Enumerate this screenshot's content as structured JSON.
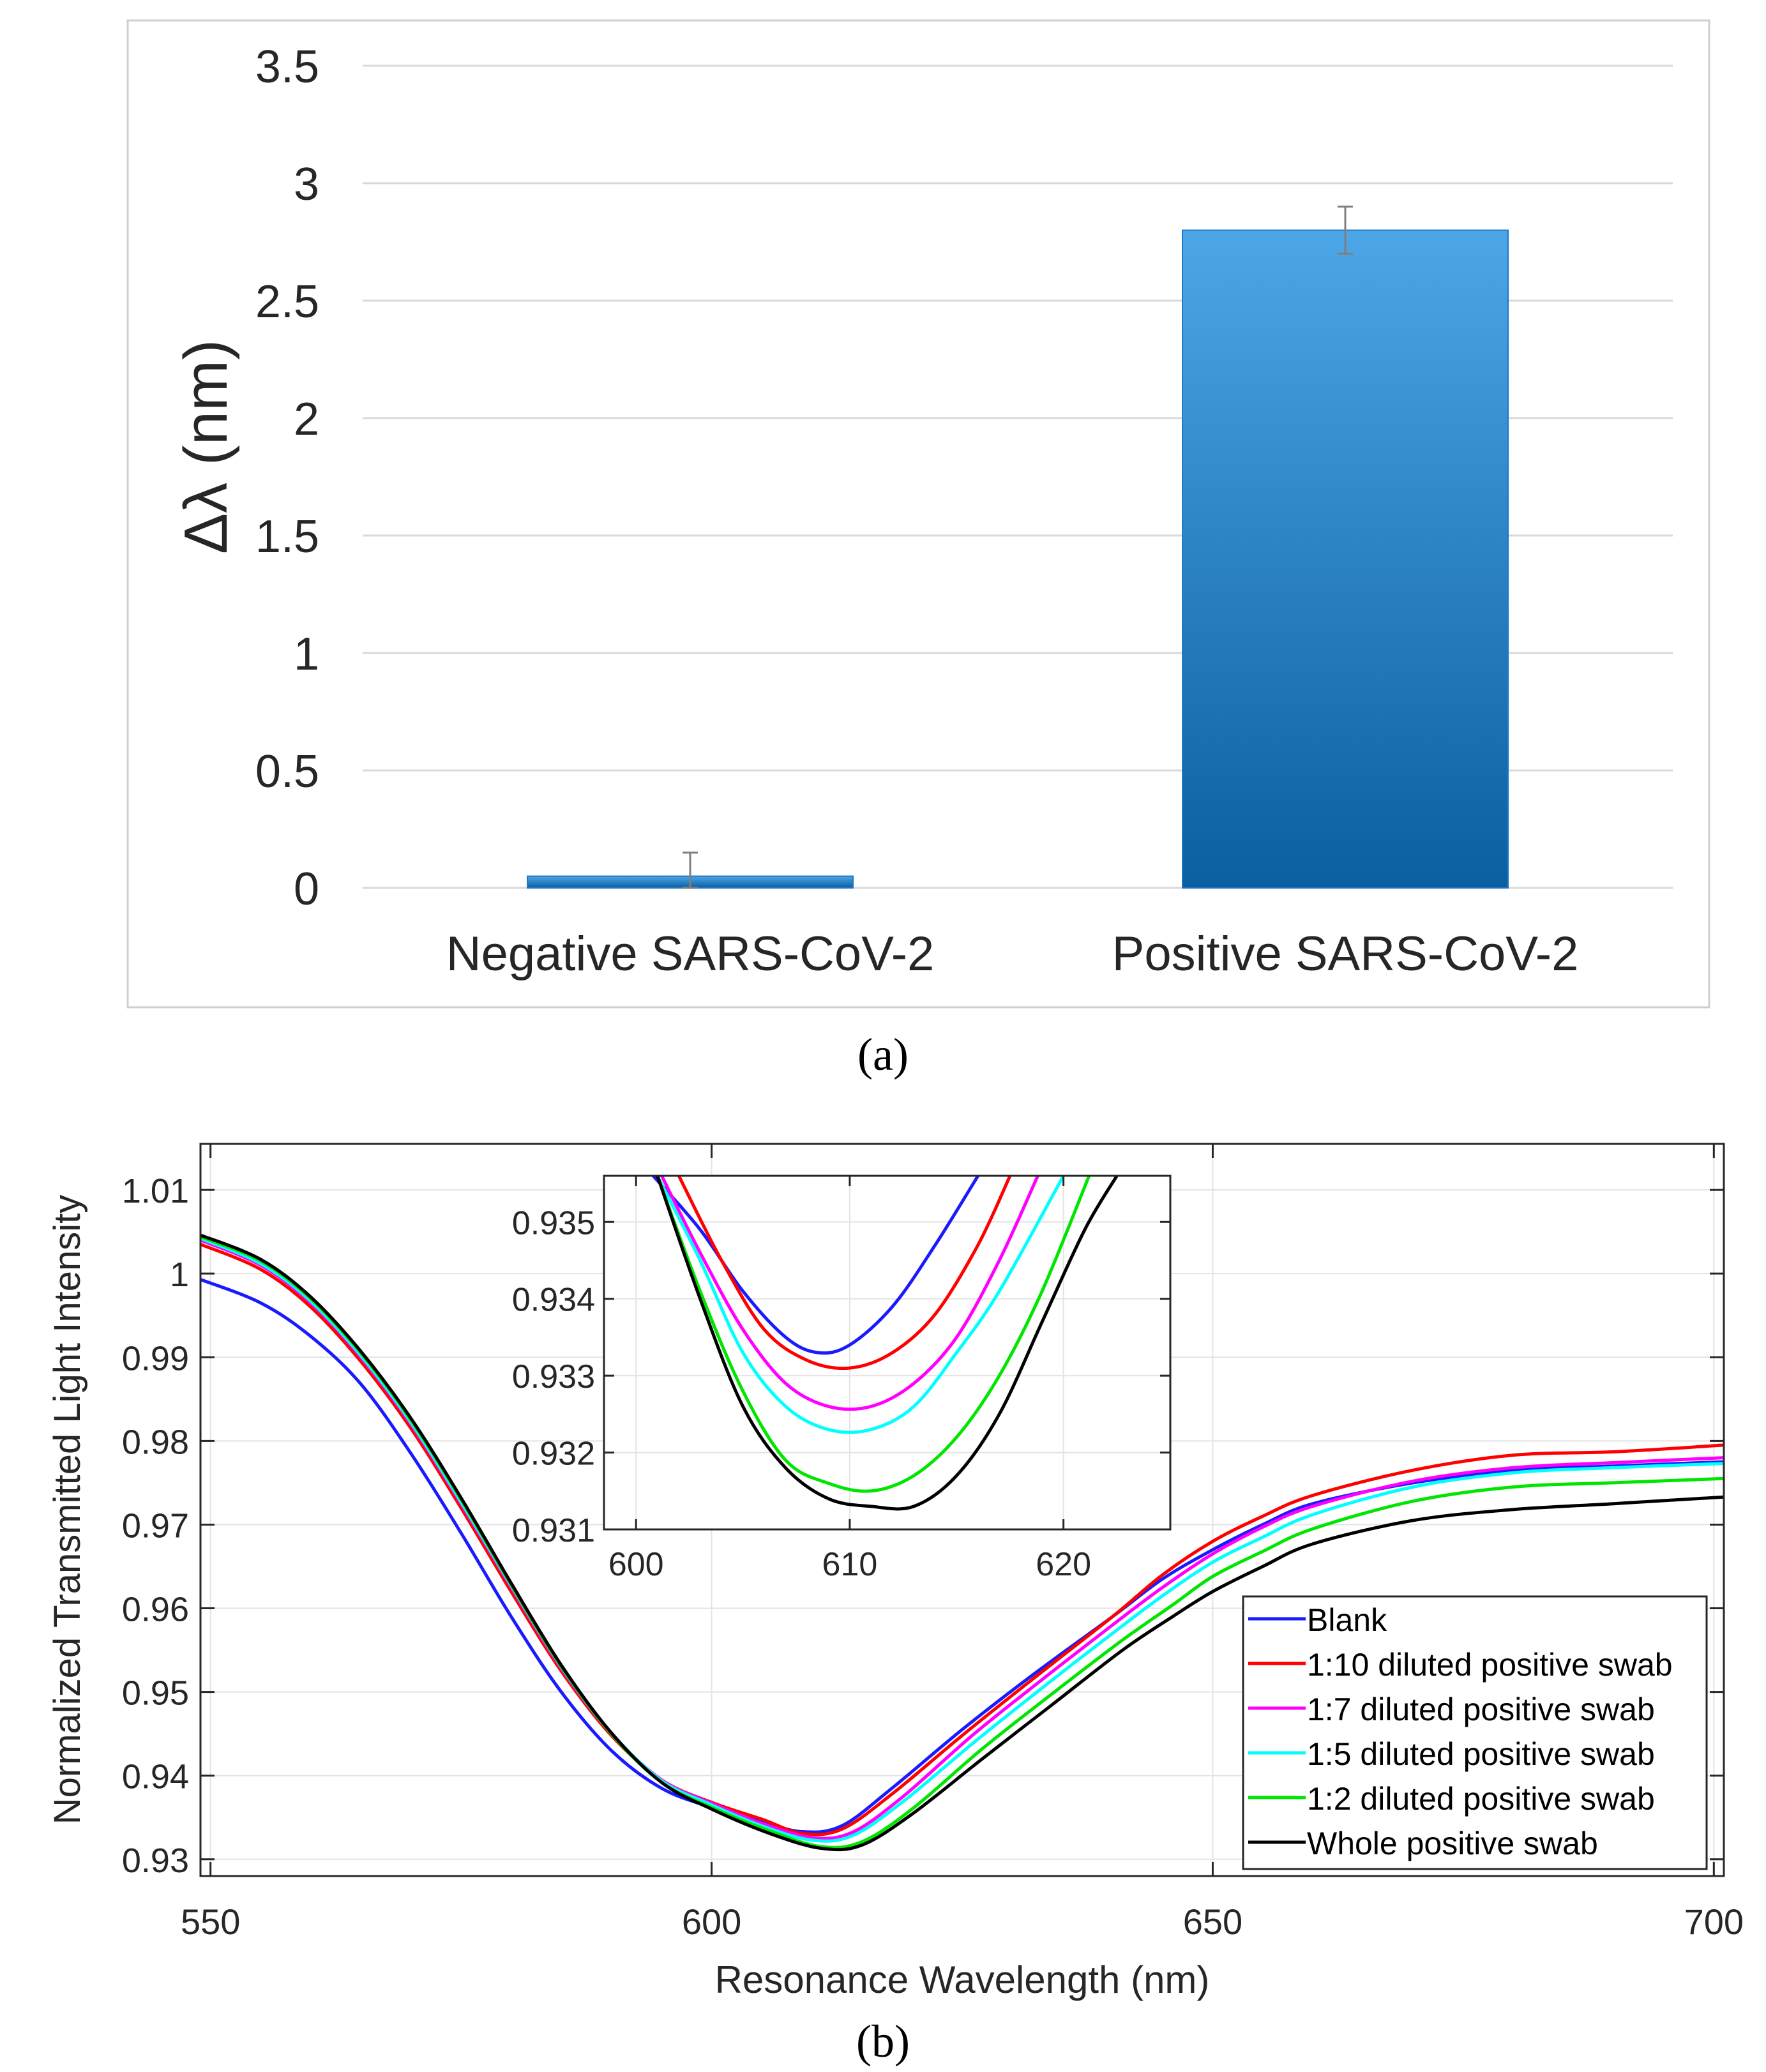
{
  "figure_labels": {
    "a": "(a)",
    "b": "(b)"
  },
  "colors": {
    "bar_top": "#4da6e6",
    "bar_bottom": "#0a5fa0",
    "grid_a": "#d9d9d9",
    "frame_a": "#cfcfcf",
    "error_bar": "#7f7f7f",
    "grid_b": "#e3e3e3",
    "axis_b": "#262626",
    "text": "#262626"
  },
  "chart_data": [
    {
      "id": "a",
      "type": "bar",
      "title": "",
      "xlabel": "",
      "ylabel": "Δλ (nm)",
      "categories": [
        "Negative SARS-CoV-2",
        "Positive SARS-CoV-2"
      ],
      "values": [
        0.05,
        2.8
      ],
      "error": [
        0.1,
        0.1
      ],
      "ylim": [
        0,
        3.5
      ],
      "yticks": [
        0,
        0.5,
        1,
        1.5,
        2,
        2.5,
        3,
        3.5
      ],
      "ytick_labels": [
        "0",
        "0.5",
        "1",
        "1.5",
        "2",
        "2.5",
        "3",
        "3.5"
      ],
      "grid": true
    },
    {
      "id": "b",
      "type": "line",
      "title": "",
      "xlabel": "Resonance Wavelength (nm)",
      "ylabel": "Normalized Transmitted Light Intensity",
      "xlim": [
        549,
        701
      ],
      "ylim": [
        0.928,
        1.0155
      ],
      "xticks": [
        550,
        600,
        650,
        700
      ],
      "xtick_labels": [
        "550",
        "600",
        "650",
        "700"
      ],
      "yticks": [
        0.93,
        0.94,
        0.95,
        0.96,
        0.97,
        0.98,
        0.99,
        1.0,
        1.01
      ],
      "ytick_labels": [
        "0.93",
        "0.94",
        "0.95",
        "0.96",
        "0.97",
        "0.98",
        "0.99",
        "1",
        "1.01"
      ],
      "grid": true,
      "legend_position": "bottom-right",
      "series": [
        {
          "name": "Blank",
          "color": "#1a1aff",
          "x": [
            549,
            555,
            560,
            565,
            570,
            575,
            580,
            585,
            590,
            595,
            600,
            605,
            609,
            613,
            618,
            625,
            632,
            640,
            645,
            650,
            655,
            660,
            670,
            680,
            690,
            701
          ],
          "y": [
            0.9993,
            0.9965,
            0.9925,
            0.9868,
            0.9785,
            0.969,
            0.959,
            0.95,
            0.943,
            0.9385,
            0.9362,
            0.9345,
            0.9333,
            0.934,
            0.9385,
            0.9455,
            0.952,
            0.959,
            0.9635,
            0.967,
            0.97,
            0.9725,
            0.975,
            0.9765,
            0.977,
            0.9775
          ]
        },
        {
          "name": "1:10 diluted positive swab",
          "color": "#ff0000",
          "x": [
            549,
            555,
            560,
            565,
            570,
            575,
            580,
            585,
            590,
            595,
            600,
            605,
            609,
            613,
            618,
            625,
            632,
            640,
            645,
            650,
            655,
            660,
            670,
            680,
            690,
            701
          ],
          "y": [
            1.0035,
            1.0005,
            0.996,
            0.9895,
            0.9815,
            0.972,
            0.962,
            0.9525,
            0.9448,
            0.9395,
            0.9368,
            0.9348,
            0.9331,
            0.9336,
            0.9378,
            0.9448,
            0.9515,
            0.959,
            0.964,
            0.968,
            0.971,
            0.9735,
            0.9765,
            0.9783,
            0.9787,
            0.9795
          ]
        },
        {
          "name": "1:7 diluted positive swab",
          "color": "#ff00ff",
          "x": [
            549,
            555,
            560,
            565,
            570,
            575,
            580,
            585,
            590,
            595,
            600,
            605,
            610,
            614,
            619,
            626,
            633,
            640,
            645,
            650,
            655,
            660,
            670,
            680,
            690,
            701
          ],
          "y": [
            1.004,
            1.001,
            0.9965,
            0.99,
            0.982,
            0.9725,
            0.9625,
            0.9528,
            0.945,
            0.9395,
            0.9367,
            0.9343,
            0.9326,
            0.9332,
            0.9374,
            0.9448,
            0.9515,
            0.958,
            0.9625,
            0.9665,
            0.9697,
            0.9722,
            0.9752,
            0.9768,
            0.9774,
            0.978
          ]
        },
        {
          "name": "1:5 diluted positive swab",
          "color": "#00ffff",
          "x": [
            549,
            555,
            560,
            565,
            570,
            575,
            580,
            585,
            590,
            595,
            600,
            605,
            610,
            614,
            619,
            626,
            633,
            640,
            645,
            650,
            655,
            660,
            670,
            680,
            690,
            701
          ],
          "y": [
            1.0042,
            1.0012,
            0.9967,
            0.9902,
            0.9822,
            0.9727,
            0.9627,
            0.953,
            0.9451,
            0.9394,
            0.9365,
            0.934,
            0.9323,
            0.9328,
            0.9368,
            0.9438,
            0.9505,
            0.957,
            0.9615,
            0.9655,
            0.9685,
            0.9712,
            0.9745,
            0.9762,
            0.9768,
            0.9773
          ]
        },
        {
          "name": "1:2 diluted positive swab",
          "color": "#00e600",
          "x": [
            549,
            555,
            560,
            565,
            570,
            575,
            580,
            585,
            590,
            595,
            600,
            606,
            611,
            615,
            620,
            627,
            634,
            641,
            646,
            650,
            655,
            660,
            670,
            680,
            690,
            701
          ],
          "y": [
            1.0044,
            1.0015,
            0.997,
            0.9905,
            0.9825,
            0.973,
            0.9628,
            0.953,
            0.945,
            0.9392,
            0.9362,
            0.9333,
            0.9315,
            0.9321,
            0.936,
            0.9432,
            0.9498,
            0.9562,
            0.9604,
            0.9638,
            0.9668,
            0.9695,
            0.9728,
            0.9745,
            0.975,
            0.9755
          ]
        },
        {
          "name": "Whole positive swab",
          "color": "#000000",
          "x": [
            549,
            555,
            560,
            565,
            570,
            575,
            580,
            585,
            590,
            595,
            600,
            606,
            611,
            615,
            620,
            627,
            634,
            641,
            646,
            650,
            655,
            660,
            670,
            680,
            690,
            701
          ],
          "y": [
            1.0046,
            1.0017,
            0.9972,
            0.9907,
            0.9827,
            0.9732,
            0.963,
            0.9532,
            0.9451,
            0.9392,
            0.936,
            0.933,
            0.9313,
            0.9317,
            0.9354,
            0.942,
            0.9485,
            0.955,
            0.959,
            0.962,
            0.965,
            0.9677,
            0.9705,
            0.9718,
            0.9725,
            0.9733
          ]
        }
      ],
      "inset": {
        "xlim": [
          598.5,
          625
        ],
        "ylim": [
          0.931,
          0.9356
        ],
        "xticks": [
          600,
          610,
          620
        ],
        "xtick_labels": [
          "600",
          "610",
          "620"
        ],
        "yticks": [
          0.931,
          0.932,
          0.933,
          0.934,
          0.935
        ],
        "ytick_labels": [
          "0.931",
          "0.932",
          "0.933",
          "0.934",
          "0.935"
        ],
        "grid": true,
        "series": [
          {
            "name": "Blank",
            "color": "#1a1aff",
            "x": [
              600.8,
              603,
              605,
              607,
              608.5,
              610,
              612,
              614,
              616
            ],
            "y": [
              0.9356,
              0.9349,
              0.9341,
              0.9335,
              0.9333,
              0.9334,
              0.9339,
              0.9347,
              0.9356
            ]
          },
          {
            "name": "1:10 diluted positive swab",
            "color": "#ff0000",
            "x": [
              602,
              604,
              606,
              608,
              610,
              612,
              614,
              616,
              617.5
            ],
            "y": [
              0.9356,
              0.9345,
              0.9336,
              0.9332,
              0.9331,
              0.9333,
              0.9338,
              0.9347,
              0.9356
            ]
          },
          {
            "name": "1:7 diluted positive swab",
            "color": "#ff00ff",
            "x": [
              601.2,
              603,
              605,
              607,
              609,
              611,
              613,
              615,
              617,
              618.8
            ],
            "y": [
              0.9356,
              0.9346,
              0.9336,
              0.9329,
              0.9326,
              0.9326,
              0.9329,
              0.9335,
              0.9345,
              0.9356
            ]
          },
          {
            "name": "1:5 diluted positive swab",
            "color": "#00ffff",
            "x": [
              601,
              603,
              605,
              607,
              609,
              611,
              613,
              615,
              617,
              620
            ],
            "y": [
              0.9356,
              0.9345,
              0.9333,
              0.9326,
              0.9323,
              0.9323,
              0.9326,
              0.9333,
              0.9341,
              0.9356
            ]
          },
          {
            "name": "1:2 diluted positive swab",
            "color": "#00e600",
            "x": [
              601,
              603,
              605,
              607,
              609,
              611,
              613,
              615,
              617,
              619,
              621.2
            ],
            "y": [
              0.9356,
              0.9341,
              0.9328,
              0.9319,
              0.9316,
              0.9315,
              0.9317,
              0.9322,
              0.933,
              0.9341,
              0.9356
            ]
          },
          {
            "name": "Whole positive swab",
            "color": "#000000",
            "x": [
              601,
              603,
              605,
              607,
              609,
              611,
              613,
              615,
              617,
              619,
              621,
              622.5
            ],
            "y": [
              0.9356,
              0.934,
              0.9326,
              0.9318,
              0.9314,
              0.9313,
              0.9313,
              0.9317,
              0.9325,
              0.9337,
              0.9349,
              0.9356
            ]
          }
        ]
      }
    }
  ]
}
